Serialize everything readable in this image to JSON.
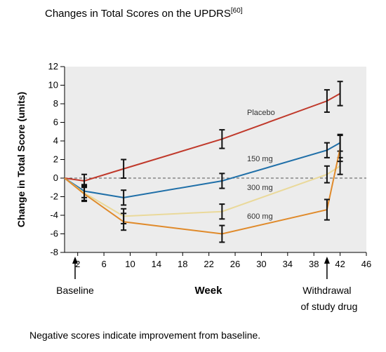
{
  "title": "Changes in Total Scores on the UPDRS",
  "title_ref": "[60]",
  "note": "Negative scores indicate improvement from baseline.",
  "chart_data": {
    "type": "line",
    "xlabel": "Week",
    "ylabel": "Change in Total Score (units)",
    "xlim": [
      0,
      46
    ],
    "ylim": [
      -8,
      12
    ],
    "xticks": [
      2,
      6,
      10,
      14,
      18,
      22,
      26,
      30,
      34,
      38,
      42,
      46
    ],
    "yticks": [
      -8,
      -6,
      -4,
      -2,
      0,
      2,
      4,
      6,
      8,
      10,
      12
    ],
    "grid": false,
    "plot_background": "#ececec",
    "reference_line": 0,
    "annotations": [
      {
        "text": "Baseline",
        "x": 0
      },
      {
        "text": "Withdrawal",
        "text2": "of study drug",
        "x": 40
      }
    ],
    "series": [
      {
        "name": "Placebo",
        "color": "#c0392b",
        "x": [
          0,
          3,
          9,
          24,
          40,
          42
        ],
        "y": [
          0,
          -0.3,
          1.0,
          4.2,
          8.3,
          9.1
        ],
        "err": [
          0,
          0.7,
          1.0,
          1.0,
          1.2,
          1.3
        ]
      },
      {
        "name": "150 mg",
        "color": "#1f6fa8",
        "x": [
          0,
          3,
          9,
          24,
          40,
          42
        ],
        "y": [
          0,
          -1.4,
          -2.1,
          -0.3,
          3.0,
          3.8
        ],
        "err": [
          0,
          0.7,
          0.8,
          0.8,
          0.8,
          0.9
        ]
      },
      {
        "name": "300 mg",
        "color": "#ead99a",
        "x": [
          0,
          3,
          9,
          24,
          40,
          42
        ],
        "y": [
          0,
          -1.6,
          -4.1,
          -3.6,
          0.4,
          1.3
        ],
        "err": [
          0,
          0.8,
          0.8,
          0.8,
          0.9,
          0.9
        ]
      },
      {
        "name": "600 mg",
        "color": "#e08a2a",
        "x": [
          0,
          3,
          9,
          24,
          40,
          42
        ],
        "y": [
          0,
          -1.7,
          -4.7,
          -6.0,
          -3.4,
          3.2
        ],
        "err": [
          0,
          0.8,
          0.9,
          0.9,
          1.1,
          1.4
        ]
      }
    ]
  }
}
